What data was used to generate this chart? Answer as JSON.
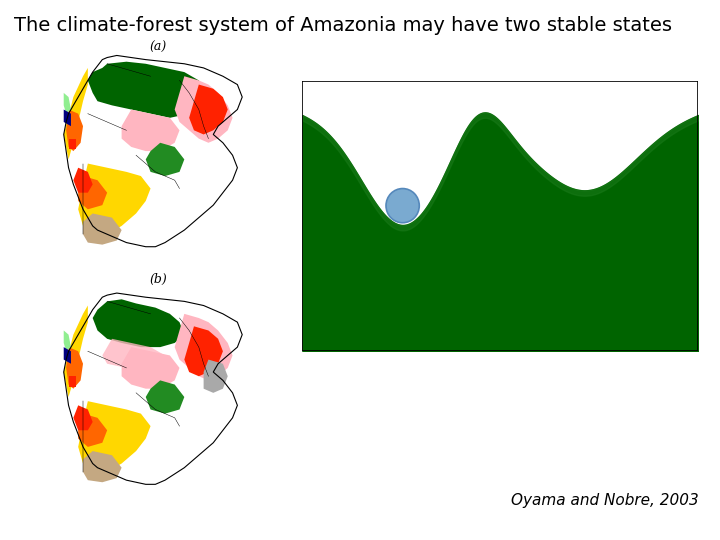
{
  "title": "The climate-forest system of Amazonia may have two stable states",
  "title_fontsize": 14,
  "citation": "Oyama and Nobre, 2003",
  "citation_fontsize": 11,
  "background_color": "#ffffff",
  "label_a": "(a)",
  "label_b": "(b)",
  "well_green_dark": "#006400",
  "well_green_mid": "#1a7a1a",
  "ball_color": "#7aaad0",
  "ball_edge": "#5588bb",
  "map_colors": {
    "amazon_green": "#228B22",
    "dark_green": "#006400",
    "pink": "#FFB6C1",
    "red": "#FF2200",
    "orange": "#FF6600",
    "yellow": "#FFD700",
    "blue_dark": "#000080",
    "light_green": "#90EE90",
    "brown": "#C4A882",
    "gray": "#A9A9A9",
    "white": "#FFFFFF"
  }
}
